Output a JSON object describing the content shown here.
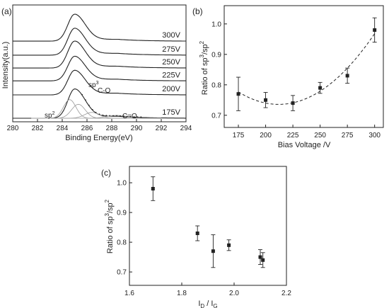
{
  "chart_data": [
    {
      "panel": "(a)",
      "type": "line",
      "xlabel": "Binding Energy(eV)",
      "ylabel": "Intensity(a.u.)",
      "xlim": [
        280,
        294
      ],
      "xticks": [
        280,
        282,
        284,
        286,
        288,
        290,
        292,
        294
      ],
      "y_ticks_shown": false,
      "peak_center_eV": 285.0,
      "series": [
        {
          "name": "300V",
          "baseline_frac": 0.69,
          "height_frac": 0.23
        },
        {
          "name": "275V",
          "baseline_frac": 0.57,
          "height_frac": 0.23
        },
        {
          "name": "250V",
          "baseline_frac": 0.46,
          "height_frac": 0.23
        },
        {
          "name": "225V",
          "baseline_frac": 0.35,
          "height_frac": 0.21
        },
        {
          "name": "200V",
          "baseline_frac": 0.23,
          "height_frac": 0.21
        },
        {
          "name": "175V",
          "baseline_frac": 0.03,
          "height_frac": 0.25
        }
      ],
      "fit_components": [
        {
          "label": "sp2",
          "center_eV": 284.6,
          "height_frac": 0.16
        },
        {
          "label": "sp3",
          "center_eV": 285.3,
          "height_frac": 0.12
        },
        {
          "label": "C-O",
          "center_eV": 286.4,
          "height_frac": 0.05
        },
        {
          "label": "C=O",
          "center_eV": 288.4,
          "height_frac": 0.025
        }
      ]
    },
    {
      "panel": "(b)",
      "type": "scatter",
      "xlabel": "Bias Voltage /V",
      "ylabel": "Ratio of sp3/sp2",
      "xlim": [
        162,
        308
      ],
      "ylim": [
        0.66,
        1.06
      ],
      "xticks": [
        175,
        200,
        225,
        250,
        275,
        300
      ],
      "yticks": [
        0.7,
        0.8,
        0.9,
        1.0
      ],
      "x": [
        175,
        200,
        225,
        250,
        275,
        300
      ],
      "y": [
        0.77,
        0.75,
        0.74,
        0.79,
        0.83,
        0.98
      ],
      "yerr": [
        0.055,
        0.025,
        0.025,
        0.018,
        0.025,
        0.04
      ],
      "fit": {
        "style": "dashed",
        "kind": "quadratic"
      }
    },
    {
      "panel": "(c)",
      "type": "scatter",
      "xlabel": "ID / IG",
      "ylabel": "Ratio of sp3/sp2",
      "xlim": [
        1.6,
        2.2
      ],
      "ylim": [
        0.655,
        1.055
      ],
      "xticks": [
        1.6,
        1.8,
        2.0,
        2.2
      ],
      "yticks": [
        0.7,
        0.8,
        0.9,
        1.0
      ],
      "x": [
        1.69,
        1.86,
        1.92,
        1.98,
        2.1,
        2.11
      ],
      "y": [
        0.98,
        0.83,
        0.77,
        0.79,
        0.75,
        0.74
      ],
      "yerr": [
        0.04,
        0.025,
        0.055,
        0.018,
        0.025,
        0.025
      ]
    }
  ],
  "labels": {
    "panel_a": "(a)",
    "panel_b": "(b)",
    "panel_c": "(c)",
    "a_xlabel": "Binding Energy(eV)",
    "a_ylabel": "Intensity(a.u.)",
    "b_xlabel": "Bias Voltage /V",
    "b_ylabel_main": "Ratio of sp",
    "b_ylabel_sup1": "3",
    "b_ylabel_mid": "/sp",
    "b_ylabel_sup2": "2",
    "c_xlabel_I": "I",
    "c_xlabel_D": "D",
    "c_xlabel_slash": " / I",
    "c_xlabel_G": "G",
    "c_ylabel_main": "Ratio of sp",
    "c_ylabel_sup1": "3",
    "c_ylabel_mid": "/sp",
    "c_ylabel_sup2": "2",
    "comp_sp2": "sp",
    "comp_sp2_sup": "2",
    "comp_sp3": "sp",
    "comp_sp3_sup": "3",
    "comp_CO": "C-O",
    "comp_CdO": "C=O"
  },
  "colors": {
    "curve": "#222222",
    "fit_component": "#9a9a9a",
    "axis": "#222222"
  }
}
